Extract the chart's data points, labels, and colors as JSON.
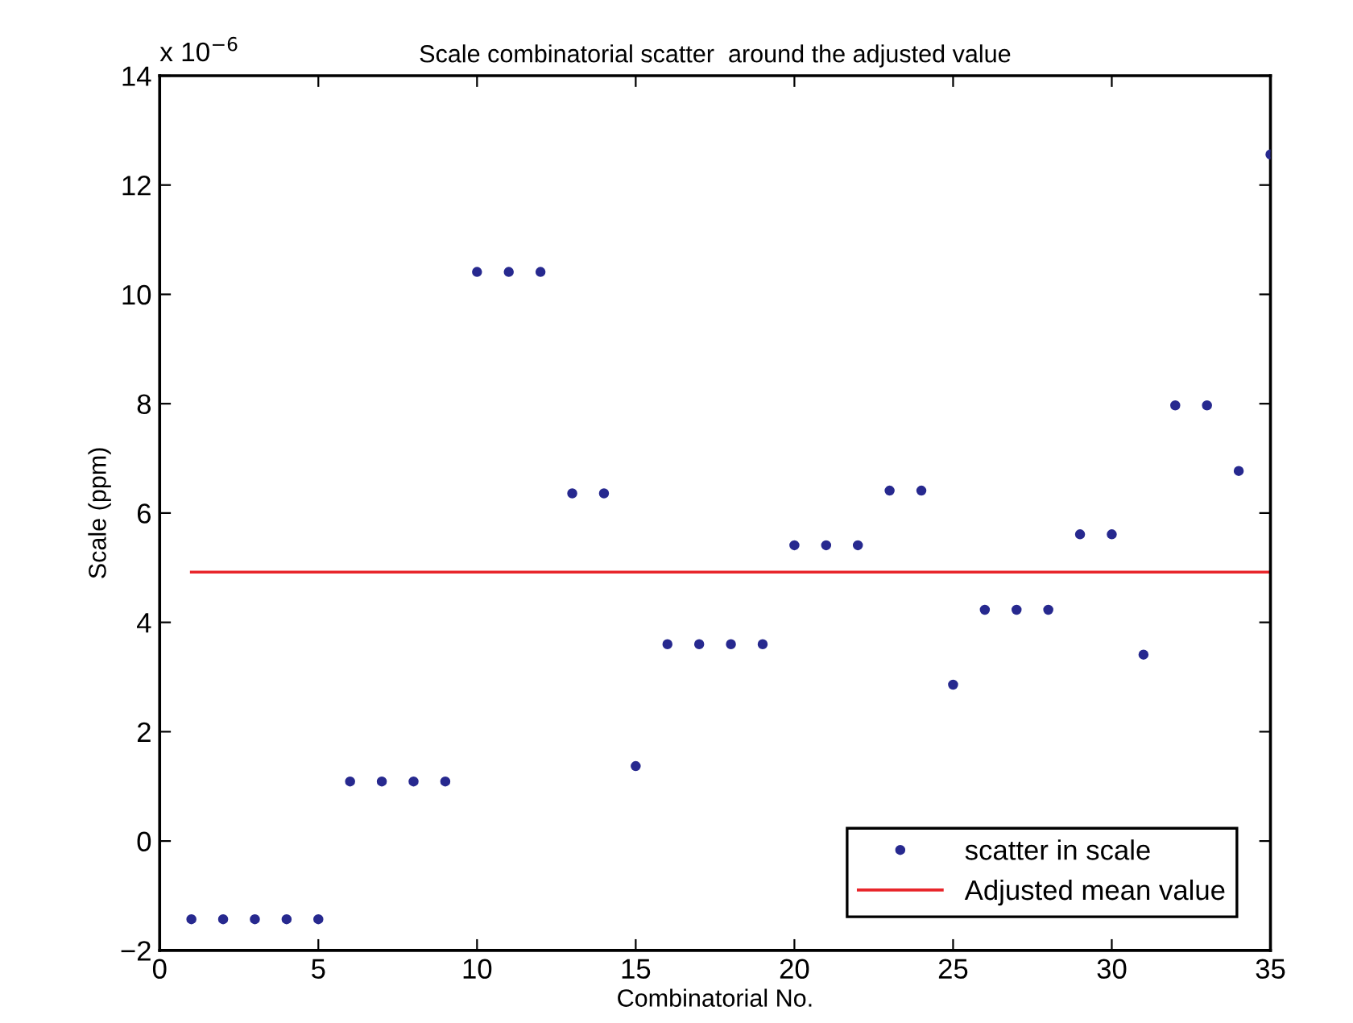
{
  "chart_data": {
    "type": "scatter",
    "title": "Scale combinatorial scatter  around the adjusted value",
    "xlabel": "Combinatorial No.",
    "ylabel": "Scale (ppm)",
    "annotations": [
      "x 10$^{−6}$"
    ],
    "series": [
      {
        "name": "scatter in scale",
        "color": "#27298f",
        "marker": "circle",
        "x": [
          1,
          2,
          3,
          4,
          5,
          6,
          7,
          8,
          9,
          10,
          11,
          12,
          13,
          14,
          15,
          16,
          17,
          18,
          19,
          20,
          21,
          22,
          23,
          24,
          25,
          26,
          27,
          28,
          29,
          30,
          31,
          32,
          33,
          34,
          35
        ],
        "values": [
          -1.43,
          -1.43,
          -1.43,
          -1.43,
          -1.43,
          1.09,
          1.09,
          1.09,
          1.09,
          10.41,
          10.41,
          10.41,
          6.36,
          6.36,
          1.37,
          3.6,
          3.6,
          3.6,
          3.6,
          5.41,
          5.41,
          5.41,
          6.41,
          6.41,
          2.86,
          4.23,
          4.23,
          4.23,
          5.61,
          5.61,
          3.41,
          7.97,
          7.97,
          6.77,
          12.56
        ]
      },
      {
        "name": "Adjusted mean value",
        "color": "#e8262b",
        "type": "line",
        "x": [
          1,
          35
        ],
        "values": [
          4.92,
          4.92
        ]
      }
    ],
    "xlim": [
      0,
      35
    ],
    "xticks": [
      0,
      5,
      10,
      15,
      20,
      25,
      30,
      35
    ],
    "ylim": [
      -2,
      14
    ],
    "yticks": [
      {
        "value": -2,
        "label": "−2"
      },
      0,
      2,
      4,
      6,
      8,
      10,
      12,
      14
    ],
    "grid": false,
    "legend": "bottom right"
  }
}
